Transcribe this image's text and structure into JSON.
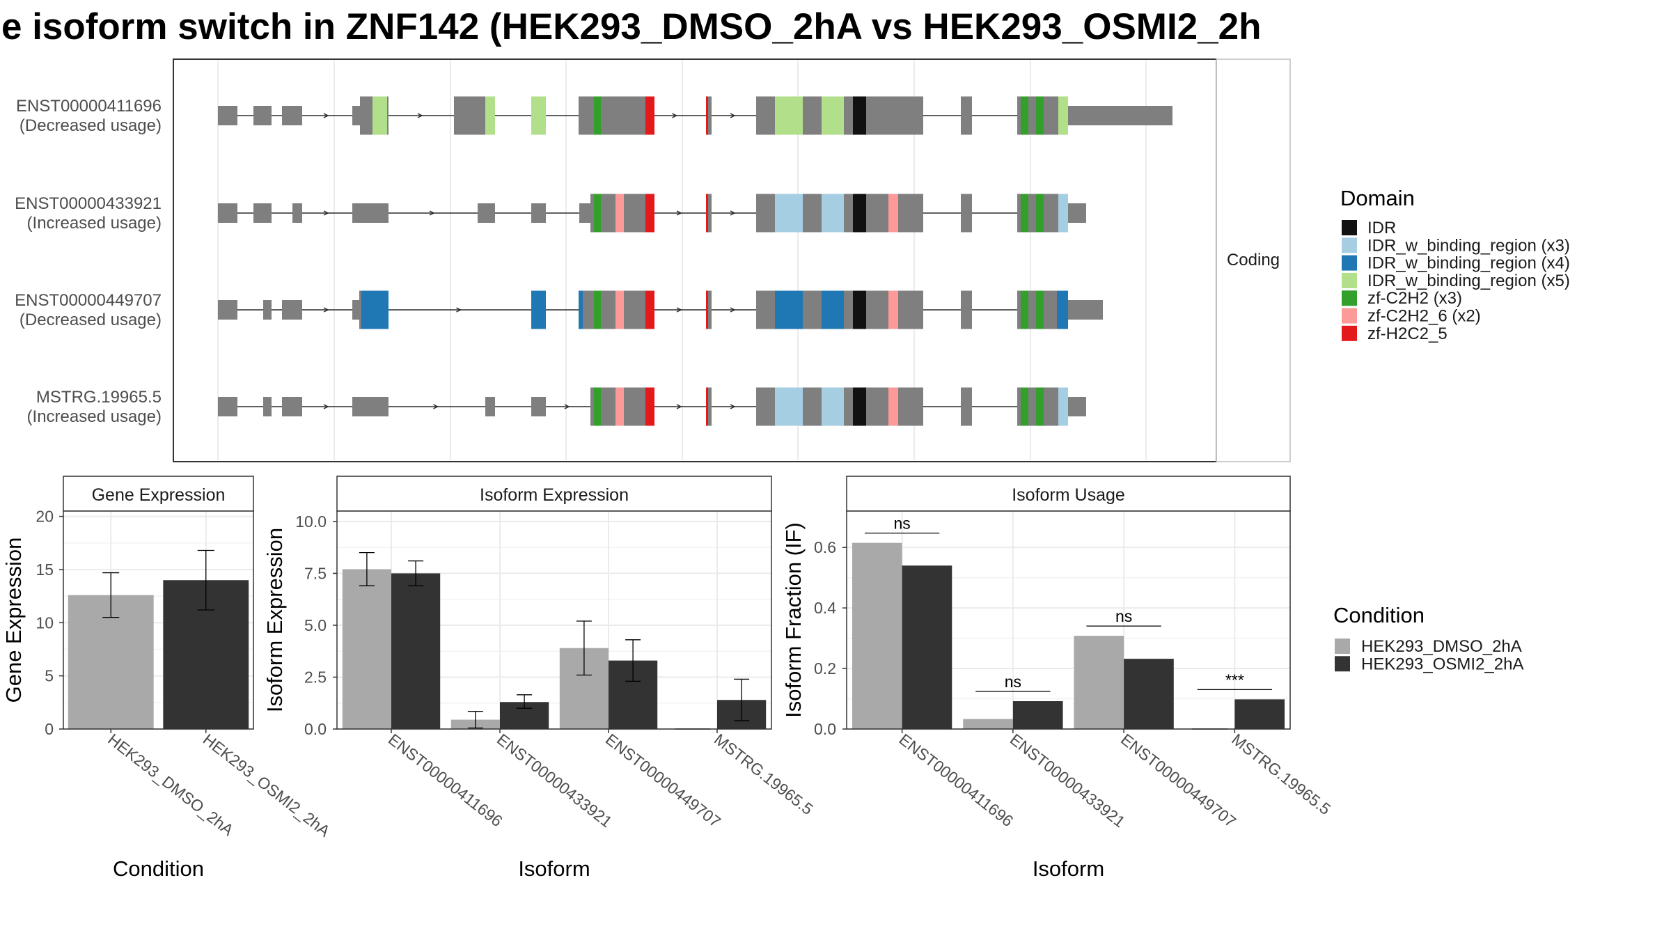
{
  "title": "e isoform switch in ZNF142 (HEK293_DMSO_2hA vs HEK293_OSMI2_2h",
  "structure_panel": {
    "strip_label": "Coding",
    "isoforms": [
      {
        "id": "ENST00000411696",
        "usage": "(Decreased usage)"
      },
      {
        "id": "ENST00000433921",
        "usage": "(Increased usage)"
      },
      {
        "id": "ENST00000449707",
        "usage": "(Decreased usage)"
      },
      {
        "id": "MSTRG.19965.5",
        "usage": "(Increased usage)"
      }
    ]
  },
  "domain_legend": {
    "title": "Domain",
    "items": [
      {
        "label": "IDR",
        "color": "#111111"
      },
      {
        "label": "IDR_w_binding_region (x3)",
        "color": "#a6cee3"
      },
      {
        "label": "IDR_w_binding_region (x4)",
        "color": "#1f78b4"
      },
      {
        "label": "IDR_w_binding_region (x5)",
        "color": "#b2df8a"
      },
      {
        "label": "zf-C2H2 (x3)",
        "color": "#33a02c"
      },
      {
        "label": "zf-C2H2_6 (x2)",
        "color": "#fb9a99"
      },
      {
        "label": "zf-H2C2_5",
        "color": "#e31a1c"
      }
    ]
  },
  "condition_legend": {
    "title": "Condition",
    "items": [
      {
        "label": "HEK293_DMSO_2hA",
        "color": "#a9a9a9"
      },
      {
        "label": "HEK293_OSMI2_2hA",
        "color": "#333333"
      }
    ]
  },
  "chart_data": [
    {
      "type": "bar",
      "title": "Gene Expression",
      "xlabel": "Condition",
      "ylabel": "Gene Expression",
      "categories": [
        "HEK293_DMSO_2hA",
        "HEK293_OSMI2_2hA"
      ],
      "values": [
        12.6,
        14.0
      ],
      "errors": [
        [
          10.5,
          14.7
        ],
        [
          11.2,
          16.8
        ]
      ],
      "ylim": [
        0,
        20.5
      ],
      "yticks": [
        0,
        5,
        10,
        15,
        20
      ],
      "ytick_labels": [
        "0",
        "5",
        "10",
        "15",
        "20"
      ]
    },
    {
      "type": "bar",
      "title": "Isoform Expression",
      "xlabel": "Isoform",
      "ylabel": "Isoform Expression",
      "categories": [
        "ENST00000411696",
        "ENST00000433921",
        "ENST00000449707",
        "MSTRG.19965.5"
      ],
      "series": [
        {
          "name": "HEK293_DMSO_2hA",
          "values": [
            7.7,
            0.45,
            3.9,
            0.0
          ],
          "errors": [
            [
              6.9,
              8.5
            ],
            [
              0.05,
              0.85
            ],
            [
              2.6,
              5.2
            ],
            [
              0.0,
              0.0
            ]
          ]
        },
        {
          "name": "HEK293_OSMI2_2hA",
          "values": [
            7.5,
            1.3,
            3.3,
            1.4
          ],
          "errors": [
            [
              6.9,
              8.1
            ],
            [
              1.0,
              1.65
            ],
            [
              2.3,
              4.3
            ],
            [
              0.4,
              2.4
            ]
          ]
        }
      ],
      "ylim": [
        0,
        10.5
      ],
      "yticks": [
        0,
        2.5,
        5,
        7.5,
        10
      ],
      "ytick_labels": [
        "0.0",
        "2.5",
        "5.0",
        "7.5",
        "10.0"
      ]
    },
    {
      "type": "bar",
      "title": "Isoform Usage",
      "xlabel": "Isoform",
      "ylabel": "Isoform Fraction (IF)",
      "categories": [
        "ENST00000411696",
        "ENST00000433921",
        "ENST00000449707",
        "MSTRG.19965.5"
      ],
      "series": [
        {
          "name": "HEK293_DMSO_2hA",
          "values": [
            0.615,
            0.033,
            0.308,
            0.0
          ]
        },
        {
          "name": "HEK293_OSMI2_2hA",
          "values": [
            0.54,
            0.092,
            0.232,
            0.098
          ]
        }
      ],
      "significance": [
        "ns",
        "ns",
        "ns",
        "***"
      ],
      "ylim": [
        0,
        0.72
      ],
      "yticks": [
        0,
        0.2,
        0.4,
        0.6
      ],
      "ytick_labels": [
        "0.0",
        "0.2",
        "0.4",
        "0.6"
      ]
    }
  ]
}
